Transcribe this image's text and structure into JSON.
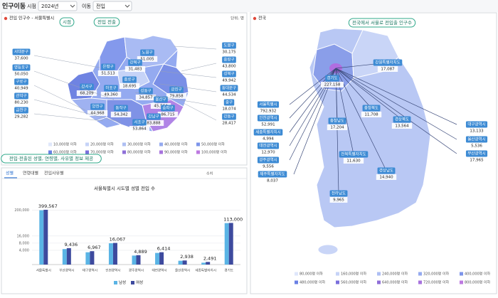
{
  "header": {
    "title": "인구이동",
    "period_label": "시점",
    "period": "2024년",
    "move_label": "이동",
    "move": "전입"
  },
  "annotations": [
    "시점",
    "전입 전출",
    "전국에서 서울로 전입출 인구수",
    "전입·전출된 성별, 연령별, 사유별 정보 제공"
  ],
  "seoul_map": {
    "title": "전입 인구수 - 서울특별시",
    "unit": "단위: 명",
    "districts": [
      {
        "name": "도봉구",
        "value": "30,175"
      },
      {
        "name": "노원구",
        "value": "51,005"
      },
      {
        "name": "강북구",
        "value": "31,483"
      },
      {
        "name": "은평구",
        "value": "51,513"
      },
      {
        "name": "종로구",
        "value": "18,695"
      },
      {
        "name": "서대문구",
        "value": "37,600"
      },
      {
        "name": "강서구",
        "value": "68,209"
      },
      {
        "name": "마포구",
        "value": "49,360"
      },
      {
        "name": "성동구",
        "value": "34,857"
      },
      {
        "name": "광진구",
        "value": "79,858"
      },
      {
        "name": "용산구",
        "value": "45,564"
      },
      {
        "name": "양천구",
        "value": "44,968"
      },
      {
        "name": "동작구",
        "value": "54,342"
      },
      {
        "name": "송파구",
        "value": "86,715"
      },
      {
        "name": "강남구",
        "value": "83,888"
      },
      {
        "name": "서초구",
        "value": "53,864"
      },
      {
        "name": "중랑구",
        "value": "43,800"
      },
      {
        "name": "성북구",
        "value": "49,942"
      },
      {
        "name": "동대문구",
        "value": "44,534"
      },
      {
        "name": "중구",
        "value": "18,074"
      },
      {
        "name": "강동구",
        "value": "28,417"
      },
      {
        "name": "영등포구",
        "value": "50,050"
      },
      {
        "name": "구로구",
        "value": "40,949"
      },
      {
        "name": "관악구",
        "value": "80,230"
      },
      {
        "name": "금천구",
        "value": "29,282"
      }
    ],
    "legend": [
      "10,000명 이하",
      "20,000명 이하",
      "30,000명 이하",
      "40,000명 이하",
      "50,000명 이하",
      "60,000명 이하",
      "70,000명 이하",
      "80,000명 이하",
      "90,000명 이하",
      "100,000명 이하"
    ]
  },
  "chart_data": {
    "type": "bar",
    "tabs": [
      "성별",
      "연령대별",
      "전입사유별"
    ],
    "toggle": "수치",
    "title": "서울특별시 시도별 성별 전입 수",
    "categories": [
      "서울특별시",
      "부산광역시",
      "대구광역시",
      "인천광역시",
      "광주광역시",
      "대전광역시",
      "울산광역시",
      "세종특별자치시",
      "경기도"
    ],
    "series": [
      {
        "name": "남성",
        "color": "#5ab4e5",
        "values": [
          195000,
          4500,
          3300,
          7900,
          2400,
          3100,
          1450,
          1200,
          56000
        ]
      },
      {
        "name": "여성",
        "color": "#3d4a9e",
        "values": [
          204567,
          4936,
          3667,
          8167,
          2489,
          3314,
          1488,
          1291,
          57000
        ]
      }
    ],
    "totals": [
      399567,
      9436,
      6967,
      16067,
      4889,
      6414,
      2938,
      2491,
      113000
    ],
    "total_labels": [
      "399,567",
      "9,436",
      "6,967",
      "16,067",
      "4,889",
      "6,414",
      "2,938",
      "2,491",
      "113,000"
    ],
    "log_scale": true,
    "ylim": [
      1000,
      500000
    ],
    "yticks": [
      {
        "value": 4000,
        "label": "4,000"
      },
      {
        "value": 8000,
        "label": "8,000"
      },
      {
        "value": 16000,
        "label": "16,000"
      },
      {
        "value": 200000,
        "label": "200,000"
      }
    ],
    "grid": true
  },
  "korea_map": {
    "title": "전국",
    "regions": [
      {
        "name": "강원특별자치도",
        "value": "17,087"
      },
      {
        "name": "경기도",
        "value": "227,158"
      },
      {
        "name": "서울특별시",
        "value": "792,932"
      },
      {
        "name": "인천광역시",
        "value": "52,991"
      },
      {
        "name": "세종특별자치시",
        "value": "4,994"
      },
      {
        "name": "대전광역시",
        "value": "12,970"
      },
      {
        "name": "광주광역시",
        "value": "9,556"
      },
      {
        "name": "제주특별자치도",
        "value": "8,037"
      },
      {
        "name": "충청북도",
        "value": "11,708"
      },
      {
        "name": "경상북도",
        "value": "13,564"
      },
      {
        "name": "충청남도",
        "value": "17,204"
      },
      {
        "name": "전북특별자치도",
        "value": "11,630"
      },
      {
        "name": "경상남도",
        "value": "14,940"
      },
      {
        "name": "전라남도",
        "value": "9,965"
      },
      {
        "name": "대구광역시",
        "value": "13,133"
      },
      {
        "name": "울산광역시",
        "value": "5,536"
      },
      {
        "name": "부산광역시",
        "value": "17,965"
      }
    ],
    "legend": [
      "80,000명 이하",
      "160,000명 이하",
      "240,000명 이하",
      "320,000명 이하",
      "400,000명 이하",
      "480,000명 이하",
      "560,000명 이하",
      "640,000명 이하",
      "720,000명 이하",
      "800,000명 이하"
    ]
  }
}
